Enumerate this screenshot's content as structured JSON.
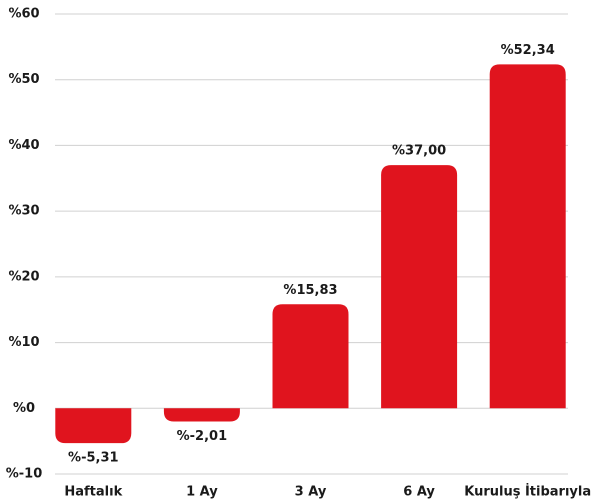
{
  "chart_data": {
    "type": "bar",
    "categories": [
      "Haftalık",
      "1 Ay",
      "3 Ay",
      "6 Ay",
      "Kuruluş İtibarıyla"
    ],
    "values": [
      -5.31,
      -2.01,
      15.83,
      37.0,
      52.34
    ],
    "value_labels": [
      "%-5,31",
      "%-2,01",
      "%15,83",
      "%37,00",
      "%52,34"
    ],
    "color": "#e0141e",
    "ylim": [
      -10,
      60
    ],
    "yticks": [
      {
        "value": -10,
        "label": "%-10"
      },
      {
        "value": 0,
        "label": "%0"
      },
      {
        "value": 10,
        "label": "%10"
      },
      {
        "value": 20,
        "label": "%20"
      },
      {
        "value": 30,
        "label": "%30"
      },
      {
        "value": 40,
        "label": "%40"
      },
      {
        "value": 50,
        "label": "%50"
      },
      {
        "value": 60,
        "label": "%60"
      }
    ],
    "grid": true
  }
}
